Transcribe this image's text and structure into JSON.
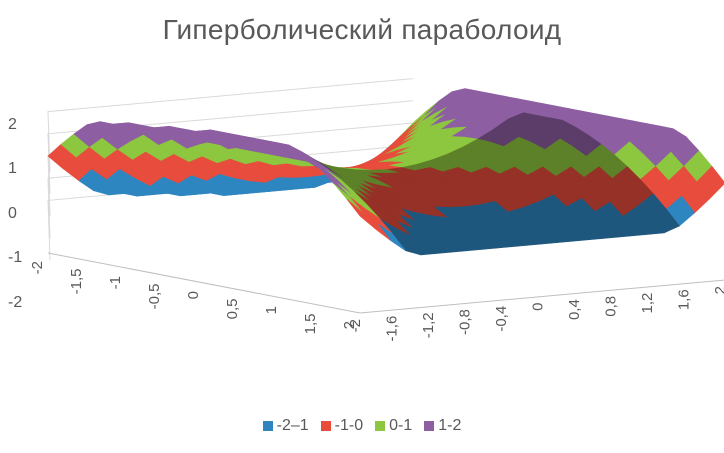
{
  "chart_data": {
    "type": "surface",
    "title": "Гиперболический параболоид",
    "x_ticks": [
      "-2",
      "-1,6",
      "-1,2",
      "-0,8",
      "-0,4",
      "0",
      "0,4",
      "0,8",
      "1,2",
      "1,6",
      "2"
    ],
    "y_ticks": [
      "-2",
      "-1,5",
      "-1",
      "-0,5",
      "0",
      "0,5",
      "1",
      "1,5",
      "2"
    ],
    "z_ticks": [
      "2",
      "1",
      "0",
      "-1",
      "-2"
    ],
    "z_range": [
      -2,
      2
    ],
    "legend_position": "bottom",
    "bands": [
      {
        "name": "-2–1",
        "range": [
          -2,
          -1
        ],
        "color": "#2E86C1"
      },
      {
        "name": "-1-0",
        "range": [
          -1,
          0
        ],
        "color": "#E74C3C"
      },
      {
        "name": "0-1",
        "range": [
          0,
          1
        ],
        "color": "#8DC63F"
      },
      {
        "name": "1-2",
        "range": [
          1,
          2
        ],
        "color": "#8E5EA2"
      }
    ],
    "grid": true
  }
}
